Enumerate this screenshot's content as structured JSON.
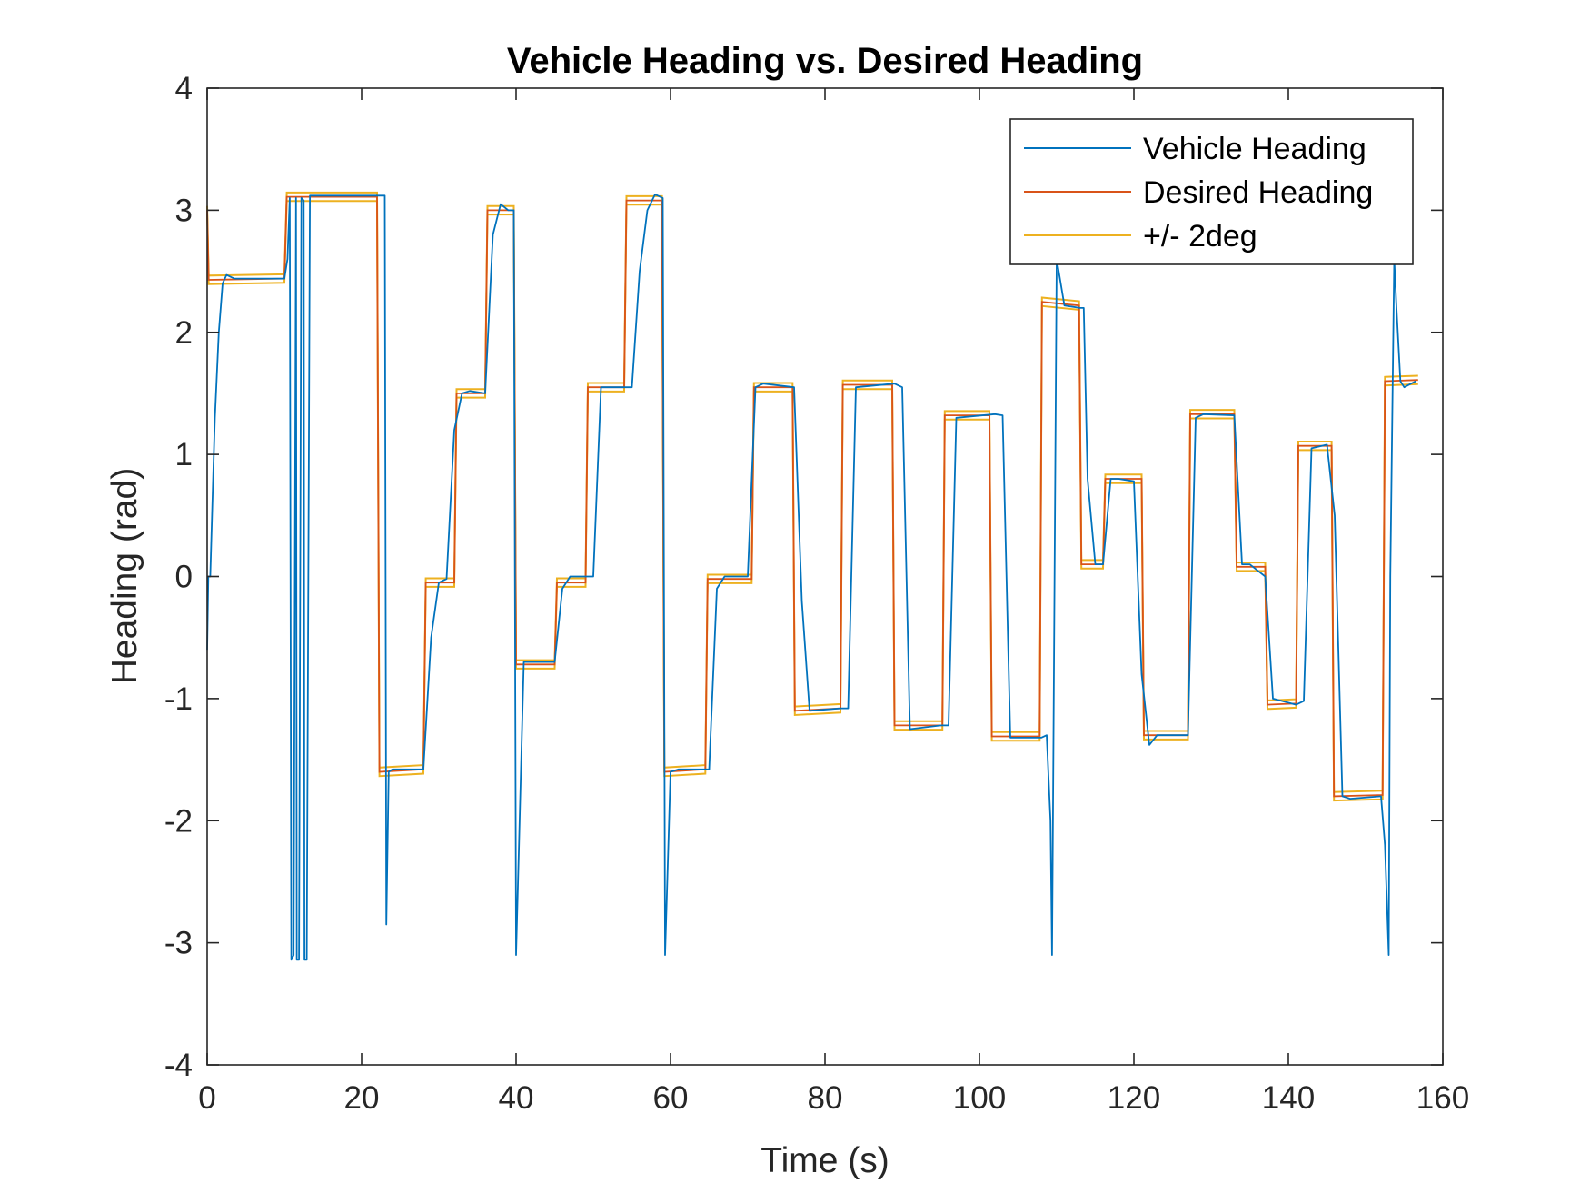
{
  "chart_data": {
    "type": "line",
    "title": "Vehicle Heading vs. Desired Heading",
    "xlabel": "Time (s)",
    "ylabel": "Heading (rad)",
    "xlim": [
      0,
      160
    ],
    "ylim": [
      -4,
      4
    ],
    "xticks": [
      0,
      20,
      40,
      60,
      80,
      100,
      120,
      140,
      160
    ],
    "yticks": [
      -4,
      -3,
      -2,
      -1,
      0,
      1,
      2,
      3,
      4
    ],
    "legend_position": "top-right",
    "tolerance": 0.0349,
    "colors": {
      "vehicle": "#0072BD",
      "desired": "#D95319",
      "band": "#EDB120",
      "axes": "#262626"
    },
    "series": [
      {
        "name": "Vehicle Heading",
        "x": [
          0,
          0.15,
          0.4,
          1.0,
          1.5,
          2.0,
          2.5,
          3.5,
          10.0,
          10.4,
          10.7,
          10.9,
          11.2,
          11.5,
          11.6,
          11.9,
          12.2,
          12.5,
          12.6,
          12.9,
          13.3,
          13.8,
          23.0,
          23.2,
          23.5,
          24.0,
          25.0,
          28.0,
          29.0,
          30.0,
          31.0,
          32.0,
          33.0,
          34.0,
          36.0,
          37.0,
          38.0,
          39.0,
          39.7,
          40.0,
          41.0,
          42.0,
          45.0,
          46.0,
          47.0,
          50.0,
          51.0,
          52.0,
          55.0,
          56.0,
          57.0,
          58.0,
          59.0,
          59.3,
          60.0,
          61.0,
          65.0,
          66.0,
          67.0,
          70.0,
          71.0,
          72.0,
          76.0,
          77.0,
          78.0,
          82.0,
          83.0,
          84.0,
          89.0,
          90.0,
          91.0,
          95.0,
          96.0,
          97.0,
          102.0,
          103.0,
          104.0,
          108.0,
          108.7,
          109.2,
          109.4,
          110.0,
          111.0,
          113.0,
          113.5,
          114.0,
          115.0,
          116.0,
          117.0,
          118.0,
          120.0,
          121.0,
          122.0,
          123.0,
          127.0,
          128.0,
          129.0,
          133.0,
          134.0,
          135.0,
          136.0,
          137.0,
          138.0,
          141.0,
          142.0,
          143.0,
          145.0,
          146.0,
          147.0,
          148.0,
          152.0,
          152.5,
          153.0,
          153.2,
          153.7,
          154.0,
          154.5,
          155.0,
          156.5
        ],
        "y": [
          -0.6,
          0.0,
          0.0,
          1.3,
          2.0,
          2.4,
          2.47,
          2.44,
          2.44,
          2.6,
          3.1,
          -3.14,
          -3.1,
          3.1,
          -3.14,
          -3.14,
          3.1,
          3.08,
          -3.14,
          -3.14,
          3.12,
          3.12,
          3.12,
          -2.85,
          -1.6,
          -1.58,
          -1.58,
          -1.58,
          -0.5,
          -0.05,
          -0.02,
          1.2,
          1.5,
          1.52,
          1.5,
          2.8,
          3.05,
          3.0,
          3.0,
          -3.1,
          -0.7,
          -0.7,
          -0.7,
          -0.1,
          0.0,
          0.0,
          1.55,
          1.55,
          1.55,
          2.5,
          3.0,
          3.13,
          3.1,
          -3.1,
          -1.6,
          -1.58,
          -1.58,
          -0.1,
          0.0,
          0.0,
          1.55,
          1.58,
          1.55,
          -0.2,
          -1.1,
          -1.08,
          -1.08,
          1.55,
          1.58,
          1.55,
          -1.25,
          -1.22,
          -1.22,
          1.3,
          1.33,
          1.32,
          -1.32,
          -1.32,
          -1.3,
          -2.0,
          -3.1,
          2.6,
          2.22,
          2.2,
          2.2,
          0.8,
          0.1,
          0.1,
          0.8,
          0.8,
          0.78,
          -0.8,
          -1.38,
          -1.3,
          -1.3,
          1.3,
          1.33,
          1.32,
          0.1,
          0.1,
          0.05,
          0.0,
          -1.0,
          -1.05,
          -1.02,
          1.05,
          1.08,
          0.5,
          -1.8,
          -1.82,
          -1.8,
          -2.2,
          -3.1,
          0.0,
          2.6,
          2.2,
          1.6,
          1.55,
          1.6
        ]
      },
      {
        "name": "Desired Heading",
        "x": [
          0,
          0.2,
          10.0,
          10.3,
          22.0,
          22.3,
          28.0,
          28.3,
          32.0,
          32.3,
          36.0,
          36.3,
          39.7,
          40.0,
          45.0,
          45.3,
          49.0,
          49.3,
          54.0,
          54.3,
          58.9,
          59.2,
          64.5,
          64.8,
          70.5,
          70.8,
          75.8,
          76.1,
          82.0,
          82.3,
          88.7,
          89.0,
          95.2,
          95.5,
          101.3,
          101.6,
          107.8,
          108.1,
          112.9,
          113.2,
          116.0,
          116.3,
          121.0,
          121.3,
          127.0,
          127.3,
          133.0,
          133.3,
          137.0,
          137.3,
          141.0,
          141.3,
          145.6,
          145.9,
          152.2,
          152.5,
          156.8
        ],
        "y": [
          3.0,
          2.43,
          2.44,
          3.11,
          3.11,
          -1.6,
          -1.58,
          -0.05,
          -0.05,
          1.5,
          1.5,
          3.0,
          3.0,
          -0.72,
          -0.72,
          -0.05,
          -0.05,
          1.55,
          1.55,
          3.08,
          3.08,
          -1.6,
          -1.58,
          -0.02,
          -0.02,
          1.55,
          1.55,
          -1.1,
          -1.08,
          1.57,
          1.57,
          -1.22,
          -1.22,
          1.32,
          1.32,
          -1.31,
          -1.31,
          2.25,
          2.22,
          0.1,
          0.1,
          0.8,
          0.8,
          -1.3,
          -1.3,
          1.33,
          1.33,
          0.08,
          0.08,
          -1.05,
          -1.04,
          1.07,
          1.07,
          -1.8,
          -1.79,
          1.6,
          1.61
        ]
      }
    ]
  }
}
